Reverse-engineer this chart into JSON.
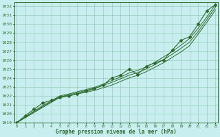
{
  "title": "Graphe pression niveau de la mer (hPa)",
  "bg_color": "#c8eef0",
  "grid_color": "#99ccbb",
  "line_color": "#2d6a2d",
  "x_ticks": [
    0,
    1,
    2,
    3,
    4,
    5,
    6,
    7,
    8,
    9,
    10,
    11,
    12,
    13,
    14,
    15,
    16,
    17,
    18,
    19,
    20,
    21,
    22,
    23
  ],
  "ylim": [
    1019,
    1032.5
  ],
  "xlim": [
    -0.3,
    23.3
  ],
  "yticks": [
    1019,
    1020,
    1021,
    1022,
    1023,
    1024,
    1025,
    1026,
    1027,
    1028,
    1029,
    1030,
    1031,
    1032
  ],
  "main_data": [
    1019.0,
    1019.8,
    1020.5,
    1021.2,
    1021.5,
    1021.8,
    1022.0,
    1022.2,
    1022.5,
    1022.8,
    1023.2,
    1024.0,
    1024.3,
    1025.0,
    1024.4,
    1025.3,
    1025.7,
    1026.0,
    1027.1,
    1028.2,
    1028.6,
    1030.0,
    1031.5,
    1032.2
  ],
  "line1": [
    1019.0,
    1019.57,
    1020.13,
    1020.7,
    1021.26,
    1021.83,
    1022.0,
    1022.2,
    1022.4,
    1022.6,
    1022.9,
    1023.2,
    1023.6,
    1024.0,
    1024.3,
    1024.7,
    1025.2,
    1025.7,
    1026.3,
    1026.9,
    1027.6,
    1028.9,
    1030.2,
    1031.6
  ],
  "line2": [
    1019.0,
    1019.6,
    1020.2,
    1020.8,
    1021.35,
    1021.9,
    1022.1,
    1022.35,
    1022.6,
    1022.85,
    1023.15,
    1023.5,
    1023.9,
    1024.3,
    1024.6,
    1025.0,
    1025.5,
    1026.05,
    1026.65,
    1027.3,
    1028.0,
    1029.2,
    1030.5,
    1031.9
  ],
  "line3": [
    1019.0,
    1019.65,
    1020.3,
    1020.9,
    1021.45,
    1022.0,
    1022.2,
    1022.45,
    1022.7,
    1022.95,
    1023.3,
    1023.7,
    1024.1,
    1024.55,
    1024.85,
    1025.25,
    1025.75,
    1026.35,
    1026.95,
    1027.65,
    1028.4,
    1029.55,
    1030.8,
    1032.2
  ]
}
